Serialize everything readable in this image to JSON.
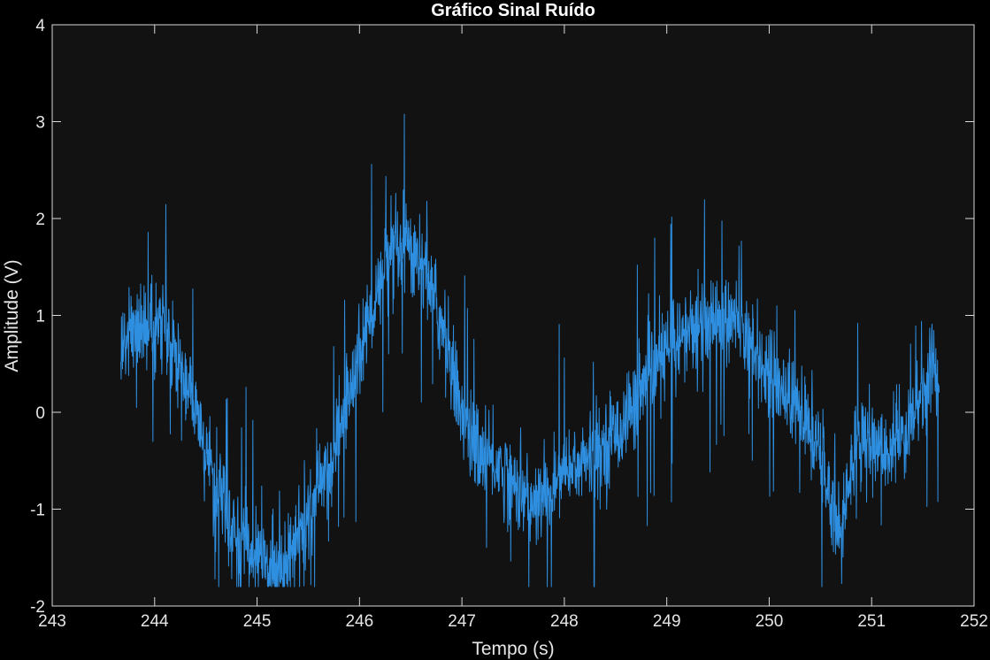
{
  "chart_data": {
    "type": "line",
    "title": "Gráfico Sinal Ruído",
    "xlabel": "Tempo (s)",
    "ylabel": "Amplitude (V)",
    "xlim": [
      243,
      252
    ],
    "ylim": [
      -2,
      4
    ],
    "xticks": [
      243,
      244,
      245,
      246,
      247,
      248,
      249,
      250,
      251,
      252
    ],
    "yticks": [
      -2,
      -1,
      0,
      1,
      2,
      3,
      4
    ],
    "grid": false,
    "legend": "none",
    "colors": {
      "figure_background": "#000000",
      "axes_background": "#121212",
      "axes_edge": "#d9d9d9",
      "text": "#e6e6e6",
      "series": "#2e8fe0"
    },
    "series": [
      {
        "x_start": 243.67,
        "x_end": 251.66,
        "envelope": [
          [
            243.67,
            0.6
          ],
          [
            243.8,
            0.9
          ],
          [
            243.95,
            0.8
          ],
          [
            244.1,
            0.9
          ],
          [
            244.25,
            0.5
          ],
          [
            244.4,
            0.0
          ],
          [
            244.55,
            -0.6
          ],
          [
            244.7,
            -1.1
          ],
          [
            244.85,
            -1.35
          ],
          [
            245.0,
            -1.5
          ],
          [
            245.15,
            -1.6
          ],
          [
            245.3,
            -1.5
          ],
          [
            245.45,
            -1.2
          ],
          [
            245.6,
            -0.8
          ],
          [
            245.75,
            -0.4
          ],
          [
            245.9,
            0.2
          ],
          [
            246.05,
            0.8
          ],
          [
            246.2,
            1.3
          ],
          [
            246.35,
            1.6
          ],
          [
            246.5,
            1.7
          ],
          [
            246.65,
            1.5
          ],
          [
            246.8,
            0.9
          ],
          [
            246.95,
            0.2
          ],
          [
            247.1,
            -0.3
          ],
          [
            247.3,
            -0.5
          ],
          [
            247.5,
            -0.7
          ],
          [
            247.7,
            -1.0
          ],
          [
            247.9,
            -0.75
          ],
          [
            248.1,
            -0.55
          ],
          [
            248.3,
            -0.45
          ],
          [
            248.5,
            -0.2
          ],
          [
            248.7,
            0.1
          ],
          [
            248.9,
            0.5
          ],
          [
            249.1,
            0.75
          ],
          [
            249.3,
            0.9
          ],
          [
            249.5,
            1.0
          ],
          [
            249.7,
            0.9
          ],
          [
            249.9,
            0.6
          ],
          [
            250.1,
            0.3
          ],
          [
            250.3,
            0.0
          ],
          [
            250.5,
            -0.45
          ],
          [
            250.62,
            -1.0
          ],
          [
            250.7,
            -1.2
          ],
          [
            250.8,
            -0.6
          ],
          [
            250.9,
            -0.2
          ],
          [
            251.0,
            -0.3
          ],
          [
            251.1,
            -0.45
          ],
          [
            251.25,
            -0.3
          ],
          [
            251.4,
            -0.05
          ],
          [
            251.55,
            0.3
          ],
          [
            251.6,
            0.6
          ],
          [
            251.66,
            0.1
          ]
        ]
      }
    ]
  }
}
